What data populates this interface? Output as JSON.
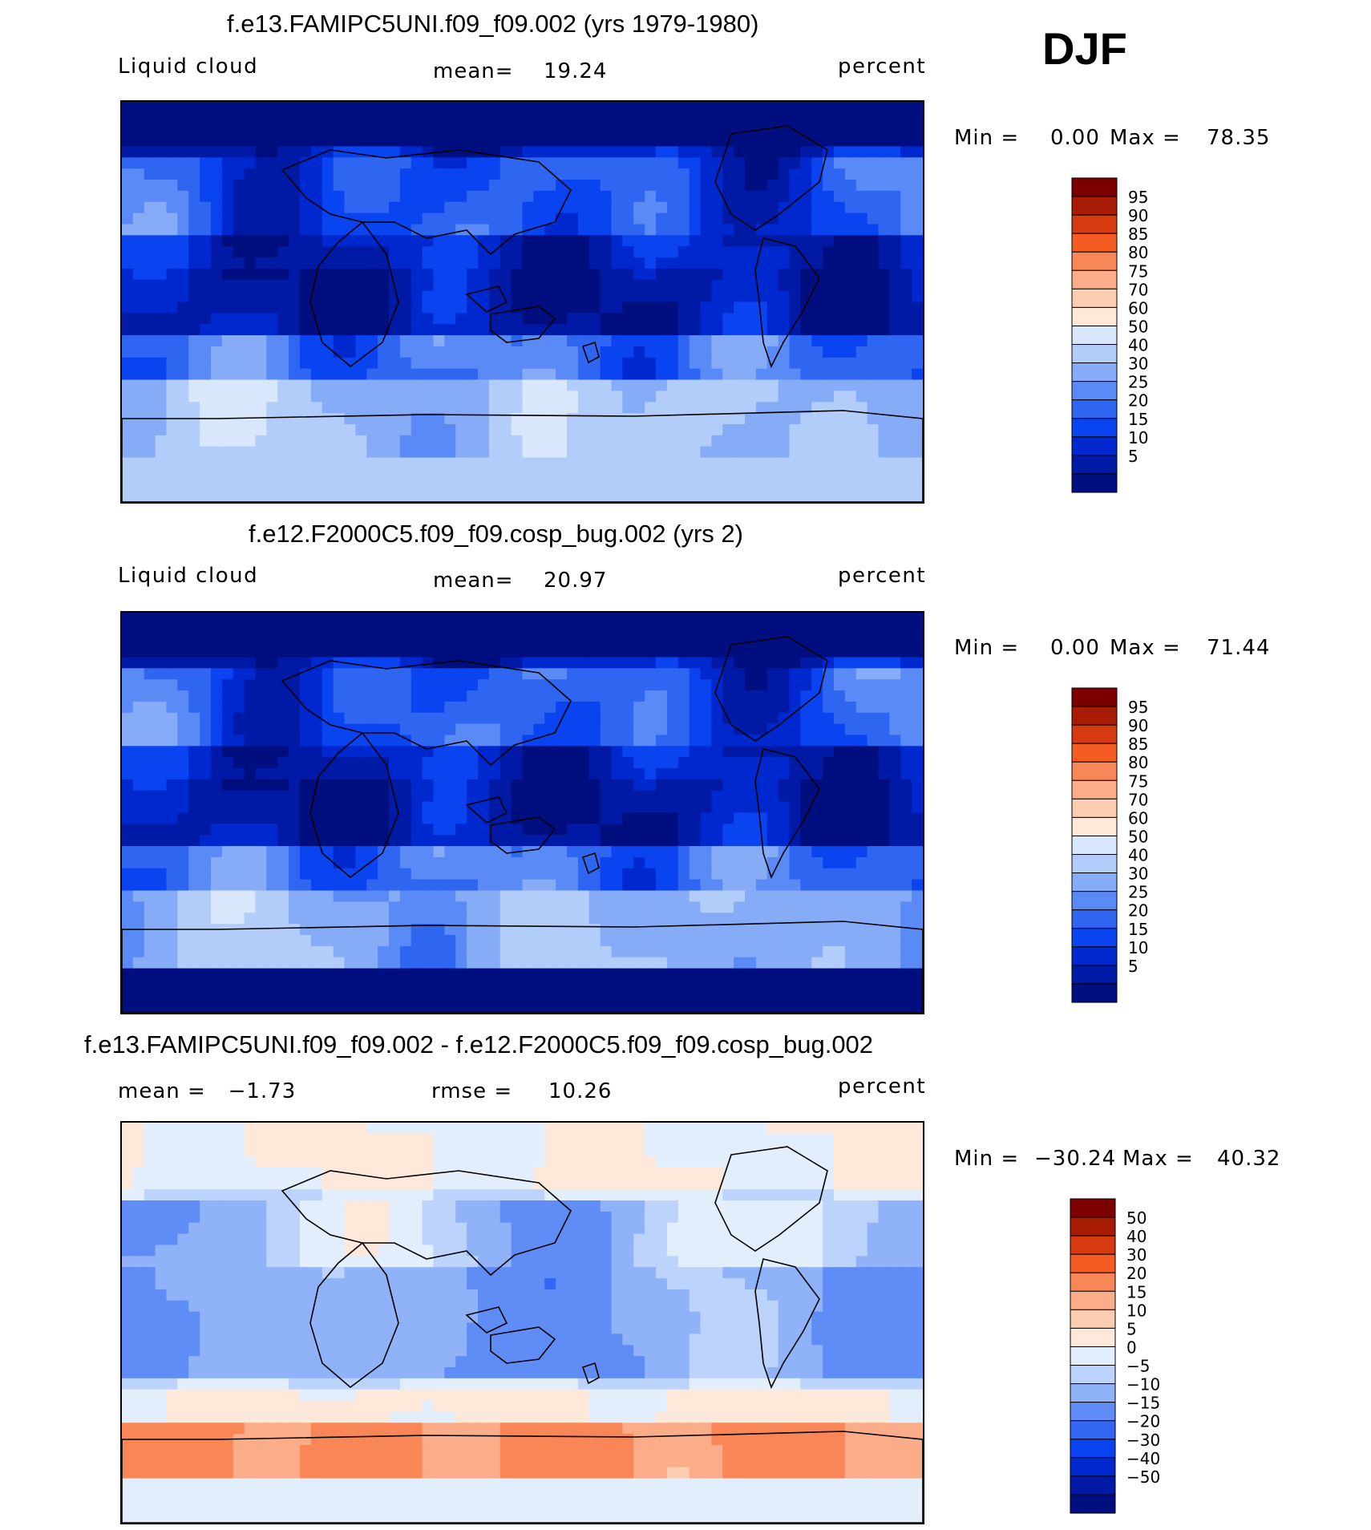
{
  "season_label": "DJF",
  "palettes": {
    "sequential": [
      "#000e80",
      "#001aa6",
      "#0028cf",
      "#0a43f0",
      "#2e66f2",
      "#5a8af5",
      "#86abf7",
      "#b2cdfa",
      "#d8e7fc",
      "#fde8da",
      "#fccdb1",
      "#fbac88",
      "#f98656",
      "#f45c23",
      "#d63a10",
      "#a81c06",
      "#7c0000"
    ],
    "diverging": [
      "#000e80",
      "#001aa6",
      "#0028cf",
      "#0a43f0",
      "#3366f2",
      "#5f8cf5",
      "#8fb2f8",
      "#bcd3fb",
      "#e2eefc",
      "#fde8da",
      "#fccdb1",
      "#fbac88",
      "#f98656",
      "#f45c23",
      "#d63a10",
      "#a81c06",
      "#7c0000"
    ]
  },
  "chart_data": [
    {
      "type": "heatmap",
      "title": "f.e13.FAMIPC5UNI.f09_f09.002 (yrs 1979-1980)",
      "left_label": "Liquid cloud",
      "mean_label": "mean=",
      "mean_value": "19.24",
      "units": "percent",
      "min_label": "Min =",
      "min_value": "0.00",
      "max_label": "Max =",
      "max_value": "78.35",
      "legend_levels": [
        "95",
        "90",
        "85",
        "80",
        "75",
        "70",
        "60",
        "50",
        "40",
        "30",
        "25",
        "20",
        "15",
        "10",
        "5"
      ],
      "palette": "sequential",
      "field_mean": 19.24
    },
    {
      "type": "heatmap",
      "title": "f.e12.F2000C5.f09_f09.cosp_bug.002 (yrs 2)",
      "left_label": "Liquid cloud",
      "mean_label": "mean=",
      "mean_value": "20.97",
      "units": "percent",
      "min_label": "Min =",
      "min_value": "0.00",
      "max_label": "Max =",
      "max_value": "71.44",
      "legend_levels": [
        "95",
        "90",
        "85",
        "80",
        "75",
        "70",
        "60",
        "50",
        "40",
        "30",
        "25",
        "20",
        "15",
        "10",
        "5"
      ],
      "palette": "sequential",
      "field_mean": 20.97
    },
    {
      "type": "heatmap",
      "title": "f.e13.FAMIPC5UNI.f09_f09.002 - f.e12.F2000C5.f09_f09.cosp_bug.002",
      "left_label": "mean =   −1.73",
      "mean_label": "rmse =",
      "mean_value": "10.26",
      "units": "percent",
      "min_label": "Min =",
      "min_value": "−30.24",
      "max_label": "Max =",
      "max_value": "40.32",
      "legend_levels": [
        "50",
        "40",
        "30",
        "20",
        "15",
        "10",
        "5",
        "0",
        "−5",
        "−10",
        "−15",
        "−20",
        "−30",
        "−40",
        "−50"
      ],
      "palette": "diverging",
      "field_mean": -1.73,
      "field_rmse": 10.26
    }
  ]
}
